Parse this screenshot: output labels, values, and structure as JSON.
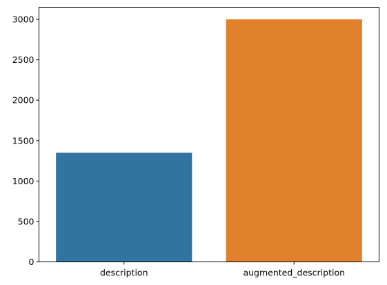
{
  "chart_data": {
    "type": "bar",
    "title": "",
    "xlabel": "",
    "ylabel": "",
    "categories": [
      "description",
      "augmented_description"
    ],
    "values": [
      1350,
      3000
    ],
    "colors": [
      "#3274a1",
      "#e1812c"
    ],
    "ylim": [
      0,
      3150
    ],
    "yticks": [
      0,
      500,
      1000,
      1500,
      2000,
      2500,
      3000
    ],
    "ytick_labels": [
      "0",
      "500",
      "1000",
      "1500",
      "2000",
      "2500",
      "3000"
    ],
    "grid": false,
    "legend": "none"
  }
}
